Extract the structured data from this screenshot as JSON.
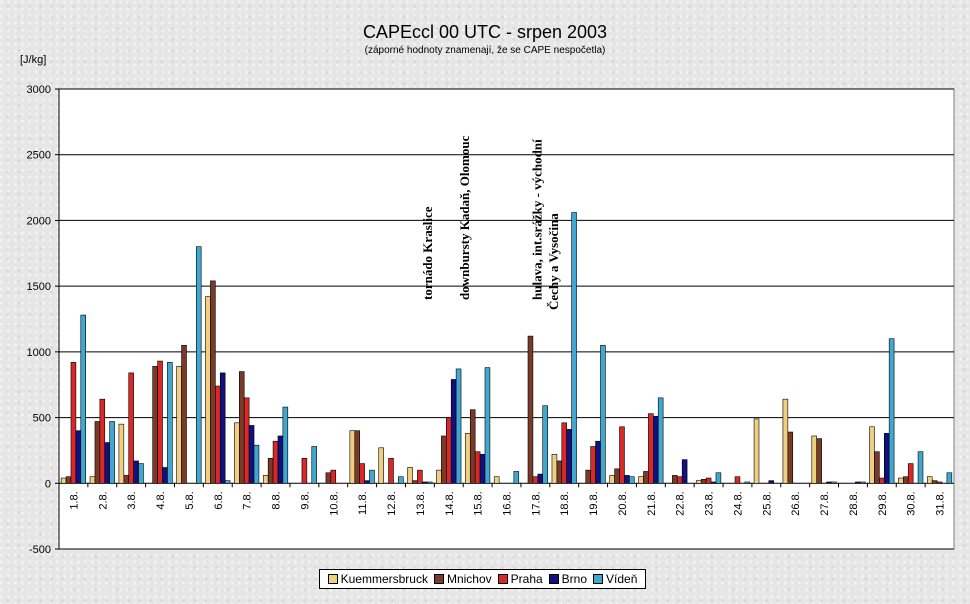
{
  "chart_data": {
    "type": "bar",
    "title": "CAPEccl 00 UTC - srpen 2003",
    "subtitle": "(záporné hodnoty znamenají, že se CAPE nespočetla)",
    "ylabel": "[J/kg]",
    "ylim": [
      -500,
      3000
    ],
    "yticks": [
      -500,
      0,
      500,
      1000,
      1500,
      2000,
      2500,
      3000
    ],
    "grid": true,
    "legend_position": "bottom",
    "categories": [
      "1.8.",
      "2.8.",
      "3.8.",
      "4.8.",
      "5.8.",
      "6.8.",
      "7.8.",
      "8.8.",
      "9.8.",
      "10.8.",
      "11.8.",
      "12.8.",
      "13.8.",
      "14.8.",
      "15.8.",
      "16.8.",
      "17.8.",
      "18.8.",
      "19.8.",
      "20.8.",
      "21.8.",
      "22.8.",
      "23.8.",
      "24.8.",
      "25.8.",
      "26.8.",
      "27.8.",
      "28.8.",
      "29.8.",
      "30.8.",
      "31.8."
    ],
    "series": [
      {
        "name": "Kuemmersbruck",
        "color": "#f0d080",
        "values": [
          40,
          50,
          450,
          0,
          890,
          1420,
          460,
          60,
          0,
          0,
          400,
          270,
          120,
          100,
          380,
          50,
          0,
          220,
          0,
          60,
          50,
          0,
          20,
          0,
          490,
          640,
          360,
          0,
          430,
          40,
          50
        ]
      },
      {
        "name": "Mnichov",
        "color": "#7a3a28",
        "values": [
          50,
          470,
          60,
          890,
          1050,
          1540,
          850,
          190,
          0,
          80,
          400,
          0,
          20,
          360,
          560,
          0,
          1120,
          170,
          100,
          110,
          90,
          60,
          30,
          0,
          0,
          390,
          340,
          0,
          240,
          50,
          20
        ]
      },
      {
        "name": "Praha",
        "color": "#d82828",
        "values": [
          920,
          640,
          840,
          930,
          0,
          740,
          650,
          320,
          190,
          100,
          150,
          190,
          100,
          500,
          240,
          0,
          50,
          460,
          280,
          430,
          530,
          50,
          40,
          50,
          0,
          0,
          0,
          0,
          40,
          150,
          10
        ]
      },
      {
        "name": "Brno",
        "color": "#101080",
        "values": [
          400,
          310,
          170,
          120,
          0,
          840,
          440,
          360,
          0,
          0,
          20,
          0,
          10,
          790,
          220,
          0,
          70,
          410,
          320,
          60,
          510,
          180,
          10,
          0,
          20,
          0,
          10,
          10,
          380,
          0,
          0
        ]
      },
      {
        "name": "Vídeň",
        "color": "#40a8d0",
        "values": [
          1280,
          470,
          150,
          920,
          1800,
          20,
          290,
          580,
          280,
          0,
          100,
          50,
          10,
          870,
          880,
          90,
          590,
          2060,
          1050,
          50,
          650,
          0,
          80,
          10,
          0,
          0,
          10,
          10,
          1100,
          240,
          80
        ]
      }
    ],
    "annotations": [
      {
        "text": "tornádo Kraslice",
        "day": "13.8."
      },
      {
        "text": "downbursty Kadaň, Olomouc",
        "day": "14.8."
      },
      {
        "text": "hulava, int.srážky - východní",
        "day": "17.8."
      },
      {
        "text": "Čechy a Vysočina",
        "day": "18.8."
      }
    ]
  }
}
